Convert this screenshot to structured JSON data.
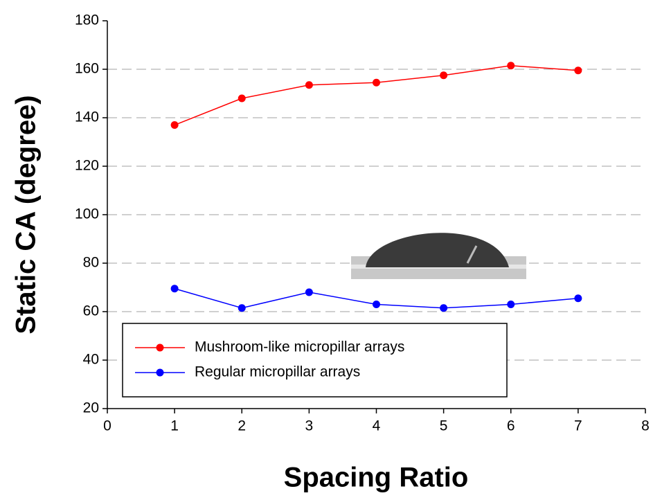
{
  "chart_data": {
    "type": "line",
    "x_label": "Spacing Ratio",
    "y_label": "Static CA (degree)",
    "x": [
      1,
      2,
      3,
      4,
      5,
      6,
      7
    ],
    "series": [
      {
        "name": "Mushroom-like micropillar arrays",
        "color": "#ff0000",
        "values": [
          137,
          148,
          153.5,
          154.5,
          157.5,
          161.5,
          159.5
        ]
      },
      {
        "name": "Regular micropillar arrays",
        "color": "#0000ff",
        "values": [
          69.5,
          61.5,
          68,
          63,
          61.5,
          63,
          65.5
        ]
      }
    ],
    "xlim": [
      0,
      8
    ],
    "xticks": [
      0,
      1,
      2,
      3,
      4,
      5,
      6,
      7,
      8
    ],
    "ylim": [
      20,
      180
    ],
    "yticks": [
      20,
      40,
      60,
      80,
      100,
      120,
      140,
      160,
      180
    ],
    "grid": true,
    "legend": "lower left"
  }
}
